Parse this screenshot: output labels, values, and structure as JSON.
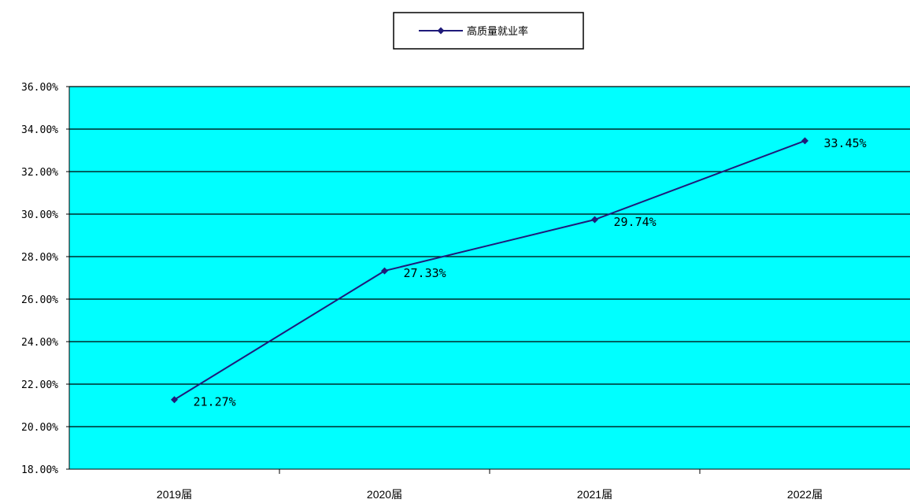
{
  "chart_data": {
    "type": "line",
    "categories": [
      "2019届",
      "2020届",
      "2021届",
      "2022届"
    ],
    "series": [
      {
        "name": "高质量就业率",
        "values": [
          21.27,
          27.33,
          29.74,
          33.45
        ],
        "data_labels": [
          "21.27%",
          "27.33%",
          "29.74%",
          "33.45%"
        ],
        "color": "#1f1a7a"
      }
    ],
    "ylim": [
      18,
      36
    ],
    "yticks": [
      18,
      20,
      22,
      24,
      26,
      28,
      30,
      32,
      34,
      36
    ],
    "ytick_labels": [
      "18.00%",
      "20.00%",
      "22.00%",
      "24.00%",
      "26.00%",
      "28.00%",
      "30.00%",
      "32.00%",
      "34.00%",
      "36.00%"
    ],
    "grid": true,
    "legend_position": "top-center",
    "plot_background": "#00ffff"
  }
}
